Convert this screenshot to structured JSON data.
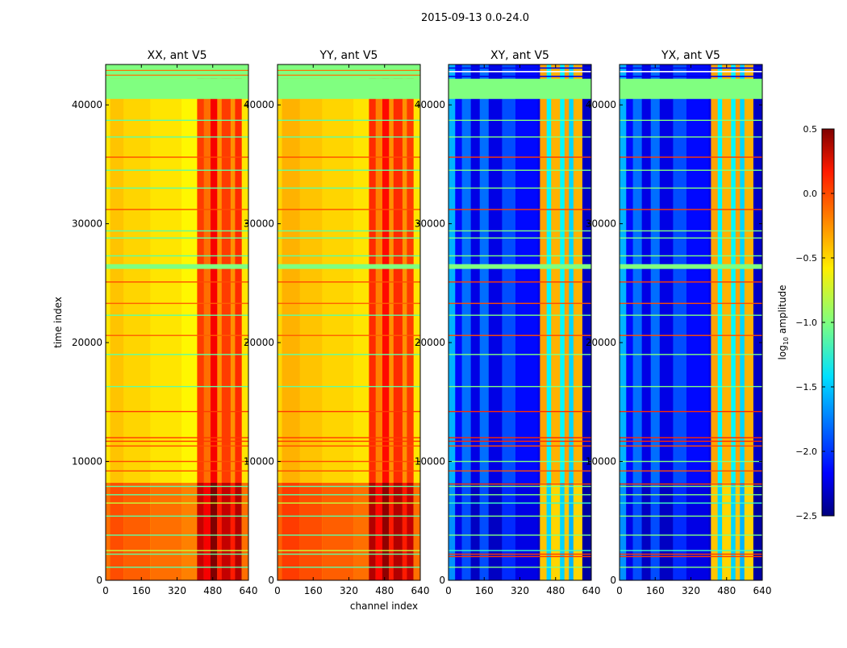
{
  "chart_data": {
    "type": "heatmap",
    "title": "2015-09-13 0.0-24.0",
    "xlabel": "channel index",
    "ylabel": "time index",
    "xlim": [
      0,
      640
    ],
    "ylim": [
      0,
      43400
    ],
    "xticks": [
      "0",
      "160",
      "320",
      "480",
      "640"
    ],
    "yticks": [
      "0",
      "10000",
      "20000",
      "30000",
      "40000"
    ],
    "colorbar": {
      "label": "log10 amplitude",
      "label_main": "log",
      "label_sub": "10",
      "label_rest": " amplitude",
      "range": [
        -2.5,
        0.5
      ],
      "colormap": "jet",
      "ticks": [
        "0.5",
        "0.0",
        "−0.5",
        "−1.0",
        "−1.5",
        "−2.0",
        "−2.5"
      ]
    },
    "panels": [
      {
        "title": "XX, ant V5",
        "column_profile": [
          [
            0,
            20,
            -0.55
          ],
          [
            20,
            80,
            -0.45
          ],
          [
            80,
            200,
            -0.5
          ],
          [
            200,
            340,
            -0.55
          ],
          [
            340,
            410,
            -0.6
          ],
          [
            410,
            440,
            -0.05
          ],
          [
            440,
            470,
            -0.2
          ],
          [
            470,
            500,
            0.15
          ],
          [
            500,
            520,
            -0.3
          ],
          [
            520,
            560,
            -0.05
          ],
          [
            560,
            580,
            -0.3
          ],
          [
            580,
            610,
            0.0
          ],
          [
            610,
            640,
            -0.55
          ]
        ],
        "time_regions": [
          {
            "t0": 0,
            "t1": 8200,
            "offset": 0.35
          }
        ],
        "flag_bands": [
          [
            40500,
            42200,
            -1.0
          ],
          [
            42200,
            43400,
            -1.0
          ],
          [
            26200,
            26600,
            -1.0
          ]
        ],
        "lines": [
          [
            42500,
            -0.3
          ],
          [
            42900,
            -0.3
          ],
          [
            38700,
            -1.1
          ],
          [
            37300,
            -1.1
          ],
          [
            35600,
            -0.1
          ],
          [
            34500,
            -1.1
          ],
          [
            33000,
            -1.1
          ],
          [
            31200,
            -0.1
          ],
          [
            29400,
            -1.1
          ],
          [
            28800,
            -1.1
          ],
          [
            27300,
            -1.1
          ],
          [
            25100,
            -0.1
          ],
          [
            23300,
            -0.15
          ],
          [
            22300,
            -1.1
          ],
          [
            20600,
            -0.15
          ],
          [
            19000,
            -1.1
          ],
          [
            16300,
            -1.1
          ],
          [
            14200,
            -0.05
          ],
          [
            12000,
            -0.05
          ],
          [
            11700,
            -0.05
          ],
          [
            11300,
            -0.1
          ],
          [
            10000,
            -0.1
          ],
          [
            9200,
            -0.1
          ],
          [
            7900,
            -1.1
          ],
          [
            7200,
            -1.1
          ],
          [
            6500,
            -0.8
          ],
          [
            5400,
            -1.1
          ],
          [
            3800,
            -1.1
          ],
          [
            2500,
            -0.8
          ],
          [
            2200,
            -1.1
          ],
          [
            1100,
            -1.1
          ]
        ]
      },
      {
        "title": "YY, ant V5",
        "column_profile": [
          [
            0,
            20,
            -0.5
          ],
          [
            20,
            100,
            -0.4
          ],
          [
            100,
            200,
            -0.45
          ],
          [
            200,
            340,
            -0.5
          ],
          [
            340,
            410,
            -0.55
          ],
          [
            410,
            440,
            0.0
          ],
          [
            440,
            470,
            -0.25
          ],
          [
            470,
            500,
            0.1
          ],
          [
            500,
            520,
            -0.3
          ],
          [
            520,
            560,
            0.0
          ],
          [
            560,
            580,
            -0.3
          ],
          [
            580,
            610,
            -0.05
          ],
          [
            610,
            640,
            -0.55
          ]
        ],
        "time_regions": [
          {
            "t0": 0,
            "t1": 8200,
            "offset": 0.35
          }
        ],
        "flag_bands": [
          [
            40500,
            42200,
            -1.0
          ],
          [
            42200,
            43400,
            -1.0
          ],
          [
            26200,
            26600,
            -1.0
          ]
        ],
        "lines": [
          [
            42500,
            -0.3
          ],
          [
            42900,
            -0.3
          ],
          [
            38700,
            -1.1
          ],
          [
            37300,
            -1.1
          ],
          [
            35600,
            -0.1
          ],
          [
            34500,
            -1.1
          ],
          [
            33000,
            -1.1
          ],
          [
            31200,
            -0.1
          ],
          [
            29400,
            -1.1
          ],
          [
            28800,
            -1.1
          ],
          [
            27300,
            -1.1
          ],
          [
            25100,
            -0.1
          ],
          [
            23300,
            -0.15
          ],
          [
            22300,
            -1.1
          ],
          [
            20600,
            -0.15
          ],
          [
            19000,
            -1.1
          ],
          [
            16300,
            -1.1
          ],
          [
            14200,
            -0.05
          ],
          [
            12000,
            -0.05
          ],
          [
            11700,
            -0.05
          ],
          [
            11300,
            -0.1
          ],
          [
            10000,
            -0.1
          ],
          [
            9200,
            -0.1
          ],
          [
            7900,
            -1.1
          ],
          [
            7200,
            -1.1
          ],
          [
            6500,
            -0.8
          ],
          [
            5400,
            -1.1
          ],
          [
            3800,
            -1.1
          ],
          [
            2500,
            -0.8
          ],
          [
            2200,
            -1.1
          ],
          [
            1100,
            -1.1
          ]
        ]
      },
      {
        "title": "XY, ant V5",
        "column_profile": [
          [
            0,
            30,
            -1.6
          ],
          [
            30,
            60,
            -2.1
          ],
          [
            60,
            100,
            -1.8
          ],
          [
            100,
            140,
            -2.2
          ],
          [
            140,
            180,
            -1.8
          ],
          [
            180,
            240,
            -2.2
          ],
          [
            240,
            300,
            -1.9
          ],
          [
            300,
            400,
            -2.1
          ],
          [
            400,
            410,
            -2.2
          ],
          [
            410,
            440,
            -0.35
          ],
          [
            440,
            460,
            -1.4
          ],
          [
            460,
            500,
            -0.4
          ],
          [
            500,
            520,
            -1.4
          ],
          [
            520,
            540,
            -0.35
          ],
          [
            540,
            560,
            -1.5
          ],
          [
            560,
            600,
            -0.4
          ],
          [
            600,
            640,
            -2.3
          ]
        ],
        "time_regions": [
          {
            "t0": 0,
            "t1": 8200,
            "offset": -0.1
          }
        ],
        "flag_bands": [
          [
            40500,
            42200,
            -1.0
          ],
          [
            26200,
            26600,
            -1.0
          ]
        ],
        "lines": [
          [
            42400,
            -1.5
          ],
          [
            42800,
            -2.2
          ],
          [
            43100,
            -1.5
          ],
          [
            38700,
            -1.0
          ],
          [
            37300,
            -1.0
          ],
          [
            35600,
            -0.05
          ],
          [
            34500,
            -1.0
          ],
          [
            33000,
            -1.0
          ],
          [
            31200,
            -0.05
          ],
          [
            29400,
            -1.0
          ],
          [
            28800,
            -1.0
          ],
          [
            27300,
            -1.0
          ],
          [
            25100,
            -0.05
          ],
          [
            23300,
            -0.1
          ],
          [
            22300,
            -1.0
          ],
          [
            20600,
            -0.1
          ],
          [
            19000,
            -1.0
          ],
          [
            16300,
            -1.0
          ],
          [
            14200,
            0.0
          ],
          [
            12000,
            0.0
          ],
          [
            11700,
            0.0
          ],
          [
            11300,
            -0.1
          ],
          [
            10000,
            -1.0
          ],
          [
            9200,
            -0.1
          ],
          [
            8100,
            -0.05
          ],
          [
            7900,
            -1.0
          ],
          [
            7200,
            -1.0
          ],
          [
            6500,
            -1.2
          ],
          [
            5400,
            -1.0
          ],
          [
            3800,
            -1.0
          ],
          [
            2500,
            -1.2
          ],
          [
            2200,
            -0.05
          ],
          [
            2000,
            -0.05
          ],
          [
            1100,
            -1.0
          ]
        ]
      },
      {
        "title": "YX, ant V5",
        "column_profile": [
          [
            0,
            30,
            -1.6
          ],
          [
            30,
            60,
            -2.1
          ],
          [
            60,
            100,
            -1.8
          ],
          [
            100,
            140,
            -2.2
          ],
          [
            140,
            180,
            -1.8
          ],
          [
            180,
            240,
            -2.2
          ],
          [
            240,
            300,
            -1.9
          ],
          [
            300,
            400,
            -2.1
          ],
          [
            400,
            410,
            -2.2
          ],
          [
            410,
            440,
            -0.35
          ],
          [
            440,
            460,
            -1.4
          ],
          [
            460,
            500,
            -0.4
          ],
          [
            500,
            520,
            -1.4
          ],
          [
            520,
            540,
            -0.35
          ],
          [
            540,
            560,
            -1.5
          ],
          [
            560,
            600,
            -0.4
          ],
          [
            600,
            640,
            -2.3
          ]
        ],
        "time_regions": [
          {
            "t0": 0,
            "t1": 8200,
            "offset": -0.1
          }
        ],
        "flag_bands": [
          [
            40500,
            42200,
            -1.0
          ],
          [
            26200,
            26600,
            -1.0
          ]
        ],
        "lines": [
          [
            42400,
            -1.5
          ],
          [
            42800,
            -2.2
          ],
          [
            43100,
            -1.5
          ],
          [
            38700,
            -1.0
          ],
          [
            37300,
            -1.0
          ],
          [
            35600,
            -0.05
          ],
          [
            34500,
            -1.0
          ],
          [
            33000,
            -1.0
          ],
          [
            31200,
            -0.05
          ],
          [
            29400,
            -1.0
          ],
          [
            28800,
            -1.0
          ],
          [
            27300,
            -1.0
          ],
          [
            25100,
            -0.05
          ],
          [
            23300,
            -0.1
          ],
          [
            22300,
            -1.0
          ],
          [
            20600,
            -0.1
          ],
          [
            19000,
            -1.0
          ],
          [
            16300,
            -1.0
          ],
          [
            14200,
            0.0
          ],
          [
            12000,
            0.0
          ],
          [
            11700,
            0.0
          ],
          [
            11300,
            -0.1
          ],
          [
            10000,
            -1.0
          ],
          [
            9200,
            -0.1
          ],
          [
            8100,
            -0.05
          ],
          [
            7900,
            -1.0
          ],
          [
            7200,
            -1.0
          ],
          [
            6500,
            -1.2
          ],
          [
            5400,
            -1.0
          ],
          [
            3800,
            -1.0
          ],
          [
            2500,
            -1.2
          ],
          [
            2200,
            -0.05
          ],
          [
            2000,
            -0.05
          ],
          [
            1100,
            -1.0
          ]
        ]
      }
    ]
  }
}
